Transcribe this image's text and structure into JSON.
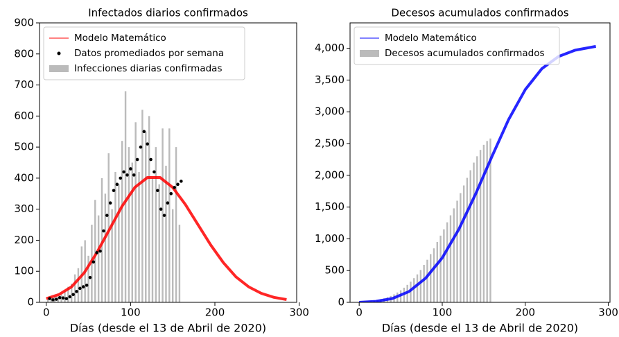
{
  "chart_data": [
    {
      "type": "combo",
      "title": "Infectados diarios confirmados",
      "x_label": "Días (desde el 13 de Abril de 2020)",
      "xlim": [
        -8,
        297
      ],
      "ylim": [
        0,
        900
      ],
      "xticks": [
        0,
        100,
        200,
        300
      ],
      "yticks": [
        0,
        100,
        200,
        300,
        400,
        500,
        600,
        700,
        800,
        900
      ],
      "legend": "upper left",
      "series": [
        {
          "name": "Modelo Matemático",
          "type": "line",
          "color": "#ff0000",
          "x": [
            0,
            15,
            30,
            45,
            60,
            75,
            90,
            105,
            120,
            135,
            150,
            165,
            180,
            195,
            210,
            225,
            240,
            255,
            270,
            285
          ],
          "values": [
            12,
            25,
            50,
            95,
            160,
            235,
            310,
            370,
            402,
            402,
            370,
            315,
            250,
            185,
            128,
            82,
            50,
            29,
            16,
            9
          ]
        },
        {
          "name": "Datos promediados por semana",
          "type": "scatter",
          "color": "#000000",
          "x": [
            4,
            8,
            12,
            16,
            20,
            24,
            28,
            32,
            36,
            40,
            44,
            48,
            52,
            56,
            60,
            64,
            68,
            72,
            76,
            80,
            84,
            88,
            92,
            96,
            100,
            104,
            108,
            112,
            116,
            120,
            124,
            128,
            132,
            136,
            140,
            144,
            148,
            152,
            156,
            160
          ],
          "values": [
            12,
            8,
            10,
            15,
            14,
            12,
            18,
            25,
            35,
            45,
            50,
            55,
            80,
            130,
            160,
            165,
            230,
            280,
            320,
            360,
            380,
            400,
            420,
            410,
            430,
            410,
            460,
            500,
            550,
            510,
            460,
            420,
            360,
            300,
            280,
            320,
            350,
            370,
            380,
            390
          ]
        },
        {
          "name": "Infecciones diarias confirmadas",
          "type": "bar",
          "color": "#bbbbbb",
          "x": [
            2,
            6,
            10,
            14,
            18,
            22,
            26,
            30,
            34,
            38,
            42,
            46,
            50,
            54,
            58,
            62,
            66,
            70,
            74,
            78,
            82,
            86,
            90,
            94,
            98,
            102,
            106,
            110,
            114,
            118,
            122,
            126,
            130,
            134,
            138,
            142,
            146,
            150,
            154,
            158
          ],
          "values": [
            10,
            15,
            20,
            18,
            25,
            35,
            50,
            60,
            90,
            110,
            180,
            200,
            150,
            250,
            330,
            280,
            400,
            350,
            480,
            300,
            420,
            380,
            520,
            680,
            500,
            450,
            580,
            420,
            620,
            550,
            600,
            400,
            500,
            380,
            560,
            440,
            560,
            300,
            500,
            250
          ]
        }
      ]
    },
    {
      "type": "combo",
      "title": "Decesos acumulados confirmados",
      "x_label": "Días (desde el 13 de Abril de 2020)",
      "xlim": [
        -11,
        302
      ],
      "ylim": [
        0,
        4400
      ],
      "xticks": [
        0,
        100,
        200,
        300
      ],
      "yticks": [
        0,
        {
          "value": 500,
          "label": "500"
        },
        {
          "value": 1000,
          "label": "1,000"
        },
        {
          "value": 1500,
          "label": "1,500"
        },
        {
          "value": 2000,
          "label": "2,000"
        },
        {
          "value": 2500,
          "label": "2,500"
        },
        {
          "value": 3000,
          "label": "3,000"
        },
        {
          "value": 3500,
          "label": "3,500"
        },
        {
          "value": 4000,
          "label": "4,000"
        }
      ],
      "legend": "upper left",
      "series": [
        {
          "name": "Modelo Matemático",
          "type": "line",
          "color": "#0000ff",
          "x": [
            0,
            20,
            40,
            60,
            80,
            100,
            120,
            140,
            160,
            180,
            200,
            220,
            240,
            260,
            285
          ],
          "values": [
            0,
            15,
            60,
            170,
            380,
            700,
            1150,
            1700,
            2300,
            2880,
            3350,
            3680,
            3870,
            3970,
            4030
          ]
        },
        {
          "name": "Decesos acumulados confirmados",
          "type": "bar",
          "color": "#bbbbbb",
          "x": [
            2,
            6,
            10,
            14,
            18,
            22,
            26,
            30,
            34,
            38,
            42,
            46,
            50,
            54,
            58,
            62,
            66,
            70,
            74,
            78,
            82,
            86,
            90,
            94,
            98,
            102,
            106,
            110,
            114,
            118,
            122,
            126,
            130,
            134,
            138,
            142,
            146,
            150,
            154,
            158
          ],
          "values": [
            5,
            8,
            12,
            18,
            25,
            35,
            48,
            62,
            80,
            100,
            125,
            155,
            190,
            230,
            275,
            325,
            380,
            440,
            510,
            590,
            670,
            760,
            850,
            950,
            1050,
            1150,
            1260,
            1370,
            1480,
            1600,
            1720,
            1840,
            1960,
            2080,
            2200,
            2300,
            2400,
            2480,
            2540,
            2580
          ]
        }
      ]
    }
  ]
}
